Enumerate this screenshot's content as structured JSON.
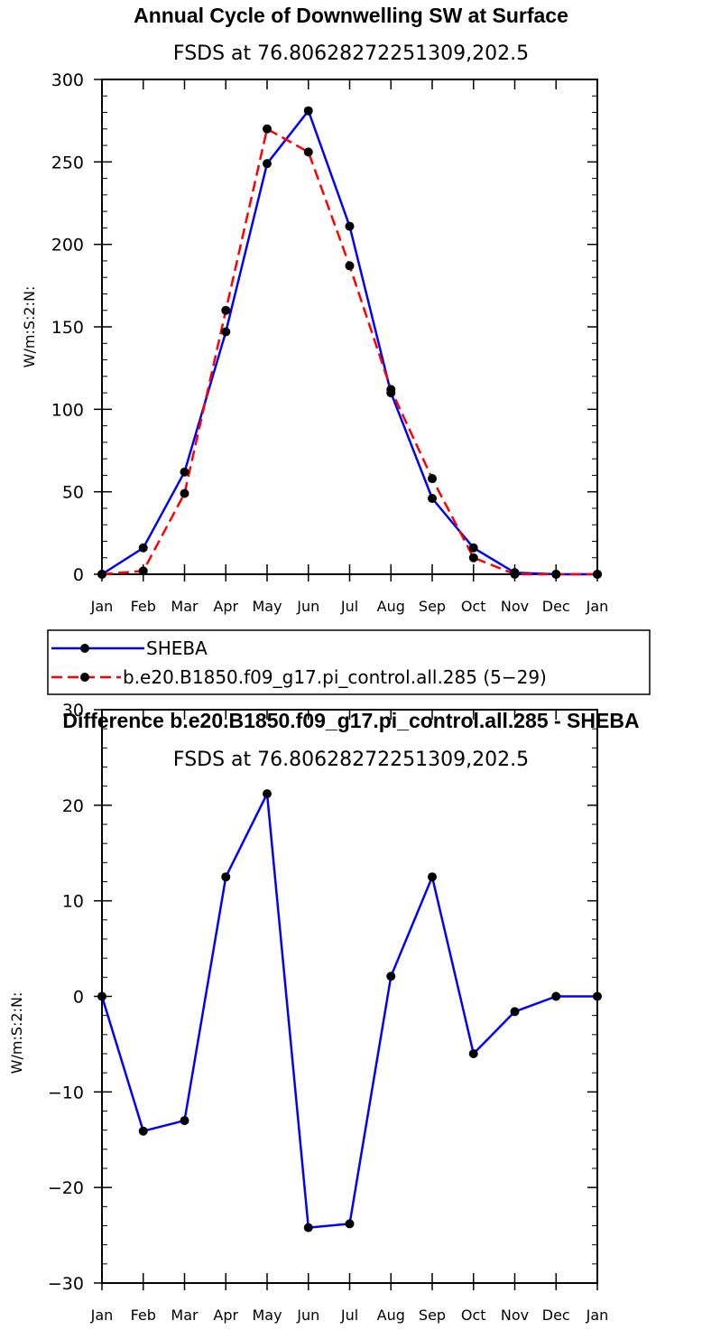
{
  "chart_data": [
    {
      "type": "line",
      "title": "Annual Cycle of Downwelling SW at Surface",
      "subtitle": "FSDS at 76.80628272251309,202.5",
      "ylabel": "W/m:S:2:N:",
      "xlabel": "",
      "categories": [
        "Jan",
        "Feb",
        "Mar",
        "Apr",
        "May",
        "Jun",
        "Jul",
        "Aug",
        "Sep",
        "Oct",
        "Nov",
        "Dec",
        "Jan"
      ],
      "ylim": [
        0,
        300
      ],
      "yticks": [
        "0",
        "50",
        "100",
        "150",
        "200",
        "250",
        "300"
      ],
      "series": [
        {
          "name": "SHEBA",
          "color": "#0000ff",
          "dash": "solid",
          "values": [
            0,
            16,
            62,
            147,
            249,
            281,
            211,
            110,
            46,
            16,
            1,
            0,
            0
          ]
        },
        {
          "name": "b.e20.B1850.f09_g17.pi_control.all.285 (5−29)",
          "color": "#ff0000",
          "dash": "dashed",
          "values": [
            0,
            2,
            49,
            160,
            270,
            256,
            187,
            112,
            58,
            10,
            0,
            0,
            0
          ]
        }
      ],
      "legend": [
        "SHEBA",
        "b.e20.B1850.f09_g17.pi_control.all.285 (5−29)"
      ]
    },
    {
      "type": "line",
      "title": "Difference b.e20.B1850.f09_g17.pi_control.all.285 - SHEBA",
      "subtitle": "FSDS at 76.80628272251309,202.5",
      "ylabel": "W/m:S:2:N:",
      "xlabel": "",
      "categories": [
        "Jan",
        "Feb",
        "Mar",
        "Apr",
        "May",
        "Jun",
        "Jul",
        "Aug",
        "Sep",
        "Oct",
        "Nov",
        "Dec",
        "Jan"
      ],
      "ylim": [
        -30,
        30
      ],
      "yticks": [
        "−30",
        "−20",
        "−10",
        "0",
        "10",
        "20",
        "30"
      ],
      "series": [
        {
          "name": "Difference",
          "color": "#0000ff",
          "dash": "solid",
          "values": [
            0,
            -14.1,
            -13.0,
            12.5,
            21.2,
            -24.2,
            -23.8,
            2.1,
            12.5,
            -6.0,
            -1.6,
            0,
            0
          ]
        }
      ]
    }
  ]
}
